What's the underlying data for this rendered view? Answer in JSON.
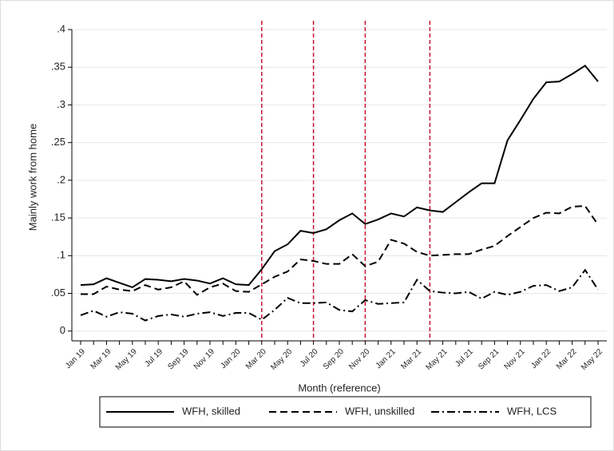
{
  "chart_data": {
    "type": "line",
    "y_label": "Mainly work from home",
    "x_label": "Month (reference)",
    "categories": [
      "Jan 19",
      null,
      "Mar 19",
      null,
      "May 19",
      null,
      "Jul 19",
      null,
      "Sep 19",
      null,
      "Nov 19",
      null,
      "Jan 20",
      null,
      "Mar 20",
      null,
      "May 20",
      null,
      "Jul 20",
      null,
      "Sep 20",
      null,
      "Nov 20",
      null,
      "Jan 21",
      null,
      "Mar 21",
      null,
      "May 21",
      null,
      "Jul 21",
      null,
      "Sep 21",
      null,
      "Nov 21",
      null,
      "Jan 22",
      null,
      "Mar 22",
      null,
      "May 22"
    ],
    "series": [
      {
        "name": "WFH, skilled",
        "color": "#000000",
        "line_style": "solid",
        "values": [
          0.061,
          0.062,
          0.07,
          0.064,
          0.058,
          0.069,
          0.068,
          0.066,
          0.069,
          0.067,
          0.063,
          0.07,
          0.062,
          0.061,
          0.082,
          0.106,
          0.115,
          0.133,
          0.13,
          0.135,
          0.147,
          0.156,
          0.142,
          0.148,
          0.156,
          0.152,
          0.164,
          0.16,
          0.158,
          0.171,
          0.184,
          0.196,
          0.196,
          0.253,
          0.28,
          0.308,
          0.33,
          0.331,
          0.341,
          0.352,
          0.331
        ]
      },
      {
        "name": "WFH, unskilled",
        "color": "#000000",
        "line_style": "dash",
        "values": [
          0.049,
          0.049,
          0.059,
          0.055,
          0.053,
          0.061,
          0.055,
          0.058,
          0.066,
          0.048,
          0.058,
          0.063,
          0.053,
          0.052,
          0.062,
          0.072,
          0.079,
          0.095,
          0.093,
          0.089,
          0.089,
          0.102,
          0.086,
          0.092,
          0.121,
          0.116,
          0.105,
          0.1,
          0.101,
          0.102,
          0.102,
          0.108,
          0.113,
          0.126,
          0.138,
          0.15,
          0.157,
          0.156,
          0.165,
          0.166,
          0.141
        ]
      },
      {
        "name": "WFH, LCS",
        "color": "#000000",
        "line_style": "dash-dot",
        "values": [
          0.021,
          0.027,
          0.019,
          0.025,
          0.023,
          0.014,
          0.02,
          0.022,
          0.019,
          0.023,
          0.025,
          0.02,
          0.024,
          0.024,
          0.015,
          0.028,
          0.044,
          0.037,
          0.037,
          0.038,
          0.028,
          0.026,
          0.041,
          0.036,
          0.037,
          0.038,
          0.068,
          0.053,
          0.051,
          0.05,
          0.052,
          0.043,
          0.052,
          0.048,
          0.052,
          0.06,
          0.061,
          0.053,
          0.058,
          0.081,
          0.055
        ]
      }
    ],
    "reference_lines": [
      14,
      18,
      22,
      27
    ],
    "reference_color": "#c8102e",
    "ylim": [
      -0.013,
      0.4
    ],
    "yticks": [
      0,
      {
        "value": 0.05,
        "label": ".05"
      },
      {
        "value": 0.1,
        "label": ".1"
      },
      {
        "value": 0.15,
        "label": ".15"
      },
      {
        "value": 0.2,
        "label": ".2"
      },
      {
        "value": 0.25,
        "label": ".25"
      },
      {
        "value": 0.3,
        "label": ".3"
      },
      {
        "value": 0.35,
        "label": ".35"
      },
      {
        "value": 0.4,
        "label": ".4"
      }
    ],
    "grid": true,
    "legend": "bottom"
  }
}
